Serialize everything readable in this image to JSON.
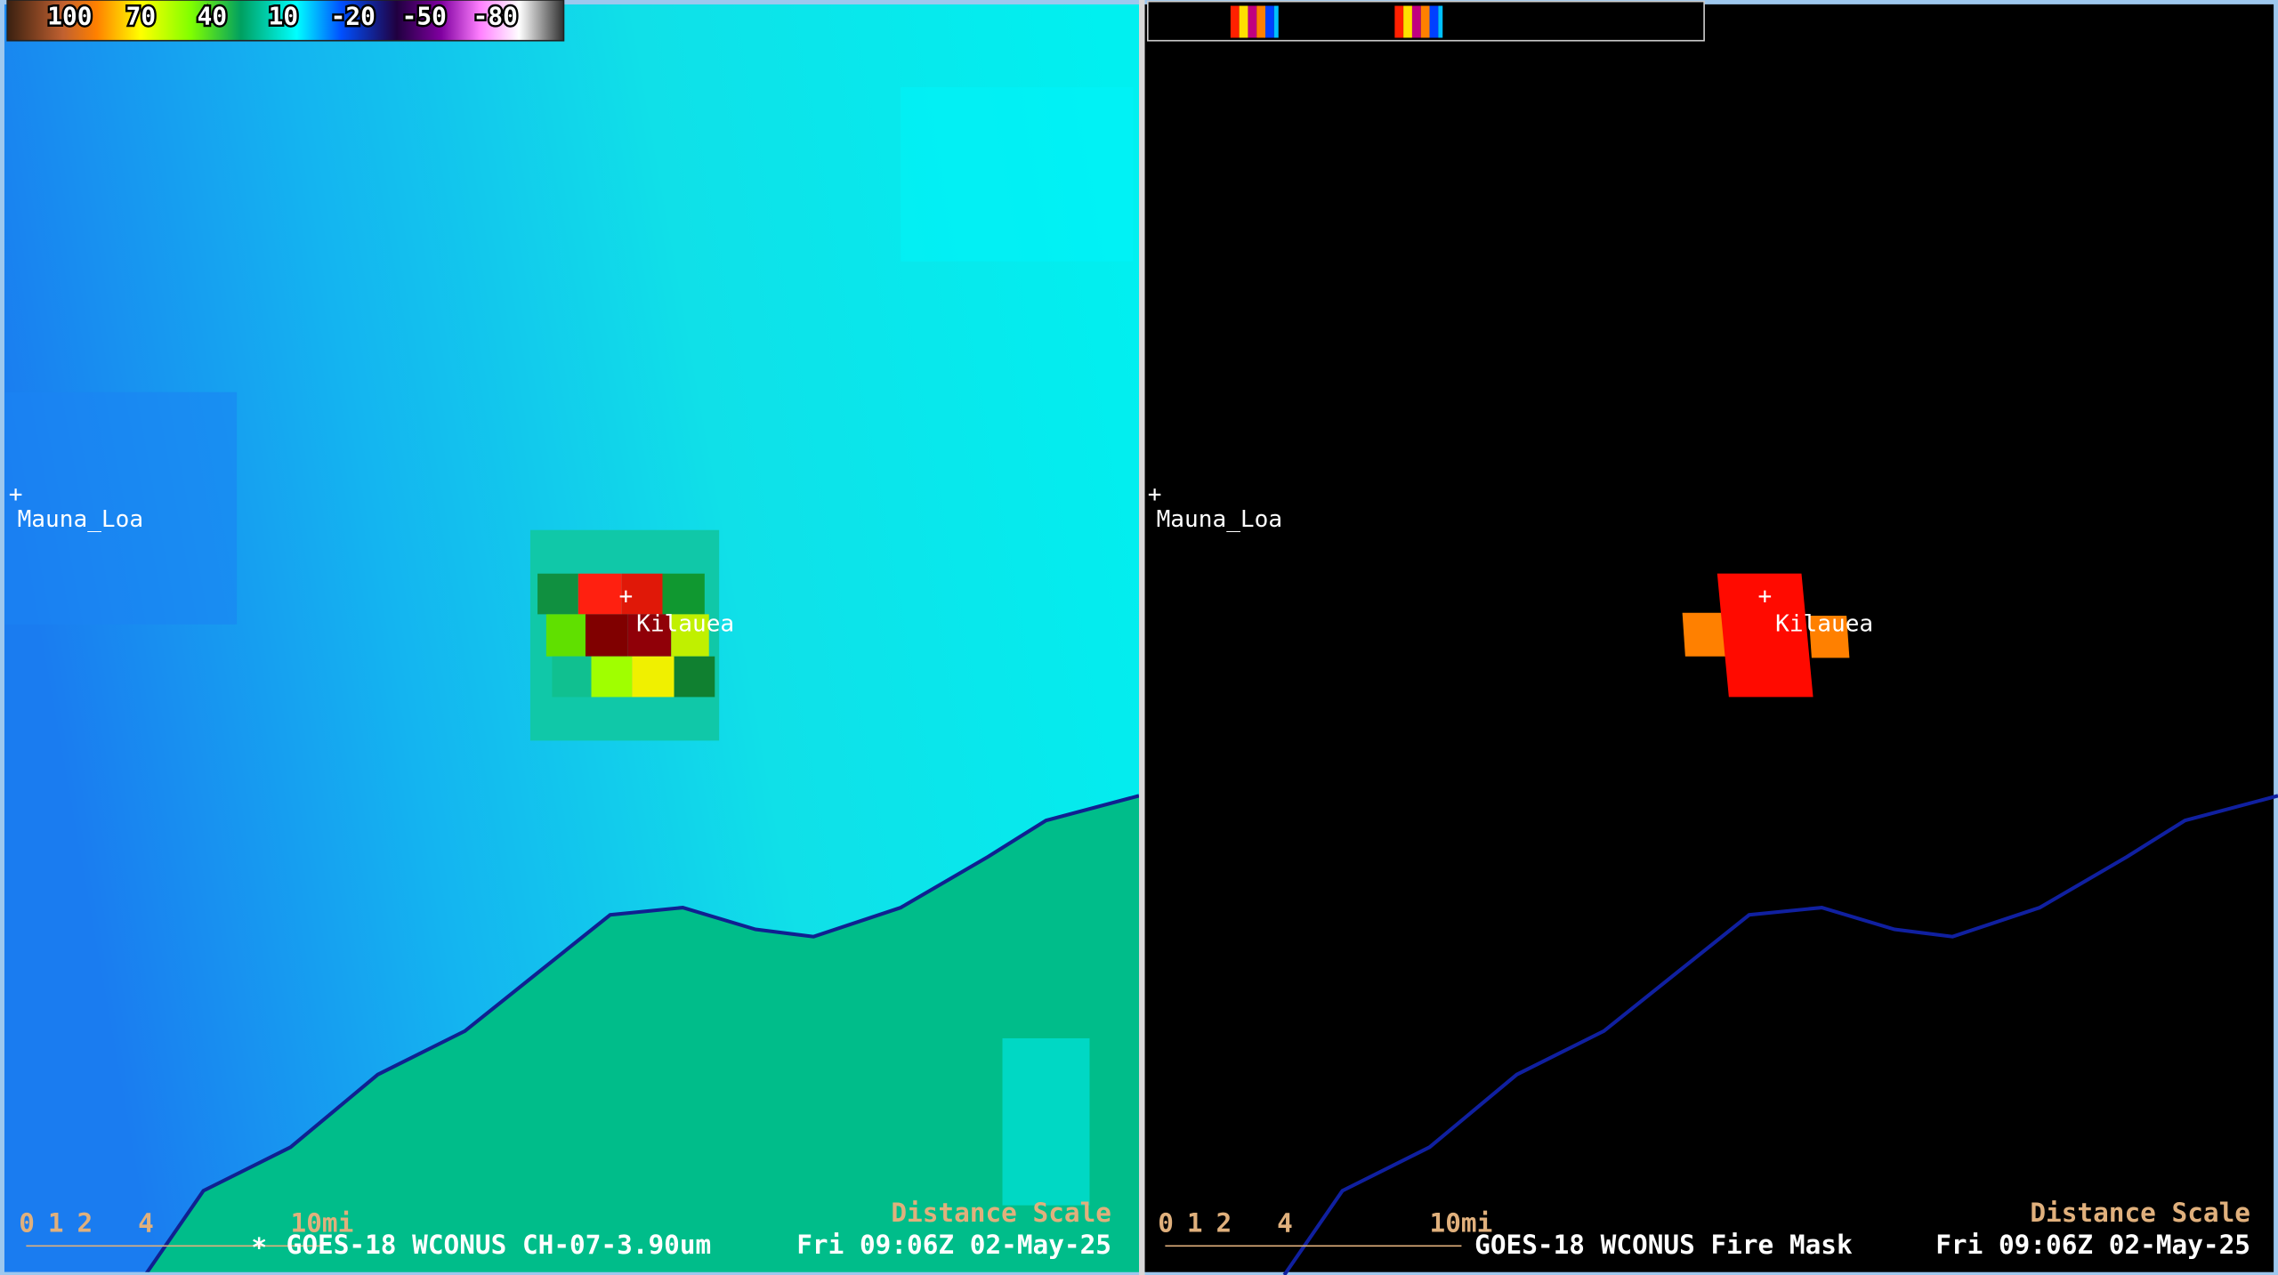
{
  "left_panel": {
    "colorbar": [
      "100",
      "70",
      "40",
      "10",
      "-20",
      "-50",
      "-80"
    ],
    "places": [
      "Mauna_Loa",
      "Kilauea"
    ],
    "scale": {
      "ticks": [
        "0",
        "1",
        "2",
        "4",
        "10mi"
      ],
      "title": "Distance Scale"
    },
    "footer": {
      "marker": "*",
      "product": "GOES-18 WCONUS CH-07-3.90um",
      "time": "Fri 09:06Z 02-May-25"
    }
  },
  "right_panel": {
    "places": [
      "Mauna_Loa",
      "Kilauea"
    ],
    "scale": {
      "ticks": [
        "0",
        "1",
        "2",
        "4",
        "10mi"
      ],
      "title": "Distance Scale"
    },
    "footer": {
      "product": "GOES-18 WCONUS Fire Mask",
      "time": "Fri 09:06Z 02-May-25"
    }
  }
}
